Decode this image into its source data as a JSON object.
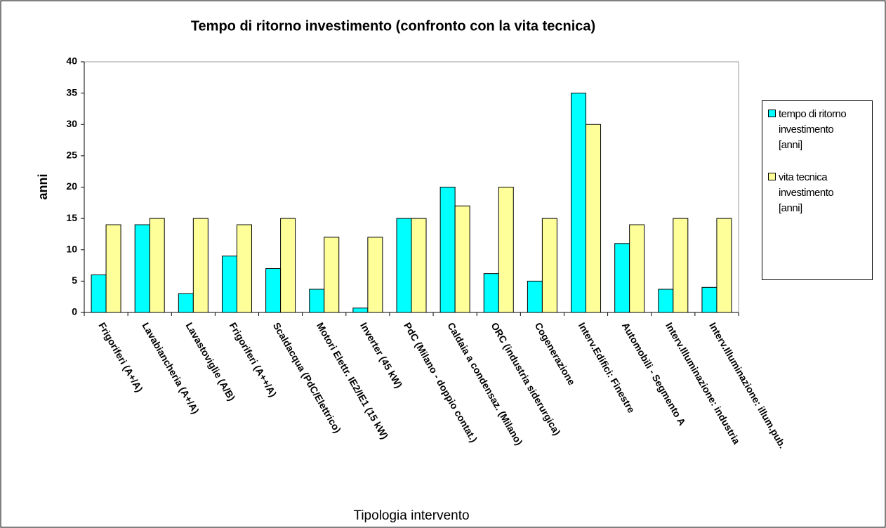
{
  "chart_data": {
    "type": "bar",
    "title": "Tempo di ritorno investimento (confronto con la vita tecnica)",
    "xlabel": "Tipologia intervento",
    "ylabel": "anni",
    "categories": [
      "Frigoriferi (A+/A)",
      "Lavabiancheria (A+/A)",
      "Lavastoviglie (A/B)",
      "Frigoriferi (A++/A)",
      "Scaldacqua (PdC/Elettrico)",
      "Motori Elettr. IE2/IE1 (15 kW)",
      "Inverter (45 kW)",
      "PdC (Milano - doppio contat.)",
      "Caldaia a condensaz. (Milano)",
      "ORC (industria siderurgica)",
      "Cogenerazione",
      "Interv.Edifici: Finestre",
      "Automobili - Segmento A",
      "Interv.Illuminazione: industria",
      "Interv.Illuminazione: illum.pub."
    ],
    "series": [
      {
        "name": "tempo di ritorno investimento [anni]",
        "color": "#00ffff",
        "values": [
          6,
          14,
          3,
          9,
          7,
          3.7,
          0.7,
          15,
          20,
          6.2,
          5,
          35,
          11,
          3.7,
          4
        ]
      },
      {
        "name": "vita tecnica investimento [anni]",
        "color": "#ffff99",
        "values": [
          14,
          15,
          15,
          14,
          15,
          12,
          12,
          15,
          17,
          20,
          15,
          30,
          14,
          15,
          15
        ]
      }
    ],
    "ylim": [
      0,
      40
    ],
    "yticks": [
      0,
      5,
      10,
      15,
      20,
      25,
      30,
      35,
      40
    ],
    "grid": false,
    "legend": "right"
  }
}
